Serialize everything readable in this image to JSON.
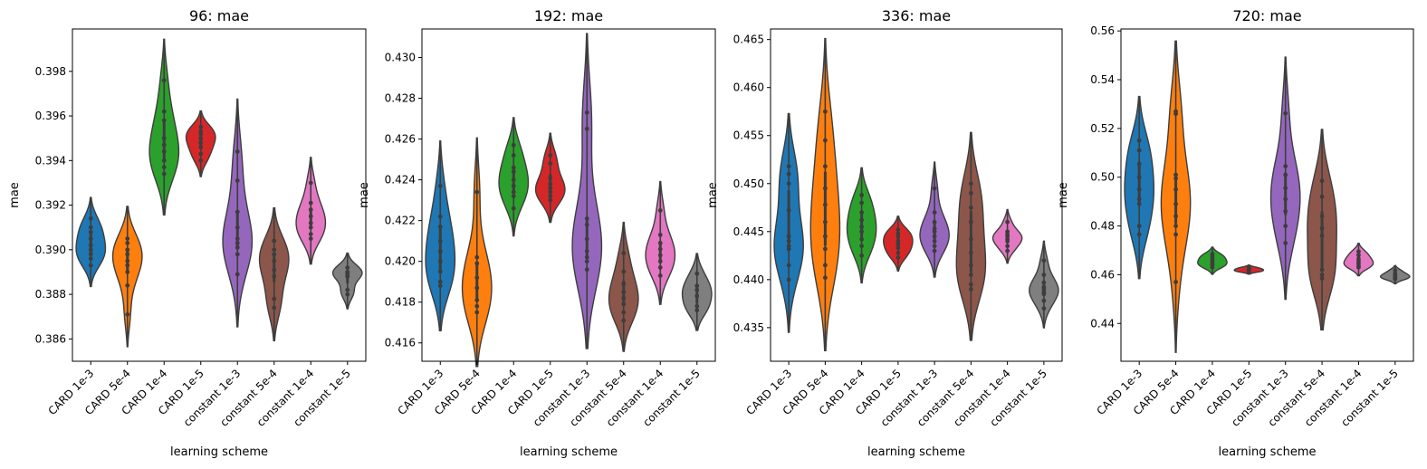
{
  "chart_data": [
    {
      "type": "violin",
      "title": "96: mae",
      "xlabel": "learning scheme",
      "ylabel": "mae",
      "ylim": [
        0.385,
        0.3999
      ],
      "yticks": [
        0.386,
        0.388,
        0.39,
        0.392,
        0.394,
        0.396,
        0.398
      ],
      "tick_decimals": 3,
      "categories": [
        "CARD 1e-3",
        "CARD 5e-4",
        "CARD 1e-4",
        "CARD 1e-5",
        "constant 1e-3",
        "constant 5e-4",
        "constant 1e-4",
        "constant 1e-5"
      ],
      "series": [
        {
          "name": "CARD 1e-3",
          "points": [
            0.391,
            0.3905,
            0.39,
            0.3898,
            0.3902,
            0.3896,
            0.3908,
            0.3914,
            0.3893
          ]
        },
        {
          "name": "CARD 5e-4",
          "points": [
            0.3903,
            0.39,
            0.3898,
            0.3895,
            0.3893,
            0.389,
            0.3884,
            0.3871,
            0.3905
          ]
        },
        {
          "name": "CARD 1e-4",
          "points": [
            0.3976,
            0.3962,
            0.3958,
            0.395,
            0.3947,
            0.3944,
            0.394,
            0.3937,
            0.3934
          ]
        },
        {
          "name": "CARD 1e-5",
          "points": [
            0.3955,
            0.3952,
            0.395,
            0.3948,
            0.3946,
            0.3943,
            0.394,
            0.3953
          ]
        },
        {
          "name": "constant 1e-3",
          "points": [
            0.3944,
            0.3931,
            0.3917,
            0.391,
            0.3905,
            0.3901,
            0.3898,
            0.3889,
            0.3903
          ]
        },
        {
          "name": "constant 5e-4",
          "points": [
            0.3904,
            0.3898,
            0.3895,
            0.3891,
            0.3888,
            0.3878,
            0.3874,
            0.39
          ]
        },
        {
          "name": "constant 1e-4",
          "points": [
            0.393,
            0.3921,
            0.3918,
            0.3915,
            0.3912,
            0.391,
            0.3907,
            0.3905
          ]
        },
        {
          "name": "constant 1e-5",
          "points": [
            0.3892,
            0.389,
            0.3889,
            0.3888,
            0.3882,
            0.388,
            0.389
          ]
        }
      ]
    },
    {
      "type": "violin",
      "title": "192: mae",
      "xlabel": "learning scheme",
      "ylabel": "mae",
      "ylim": [
        0.4151,
        0.4314
      ],
      "yticks": [
        0.416,
        0.418,
        0.42,
        0.422,
        0.424,
        0.426,
        0.428,
        0.43
      ],
      "tick_decimals": 3,
      "categories": [
        "CARD 1e-3",
        "CARD 5e-4",
        "CARD 1e-4",
        "CARD 1e-5",
        "constant 1e-3",
        "constant 5e-4",
        "constant 1e-4",
        "constant 1e-5"
      ],
      "series": [
        {
          "name": "CARD 1e-3",
          "points": [
            0.4237,
            0.4222,
            0.4217,
            0.421,
            0.4205,
            0.42,
            0.4195,
            0.419,
            0.4188
          ]
        },
        {
          "name": "CARD 5e-4",
          "points": [
            0.4234,
            0.4202,
            0.4199,
            0.4192,
            0.4187,
            0.4181,
            0.4178,
            0.4175
          ]
        },
        {
          "name": "CARD 1e-4",
          "points": [
            0.4257,
            0.4252,
            0.4246,
            0.4244,
            0.424,
            0.4237,
            0.4234,
            0.4232,
            0.4226
          ]
        },
        {
          "name": "CARD 1e-5",
          "points": [
            0.4252,
            0.4248,
            0.4241,
            0.4238,
            0.4236,
            0.4234,
            0.4232,
            0.423
          ]
        },
        {
          "name": "constant 1e-3",
          "points": [
            0.4273,
            0.4265,
            0.4221,
            0.4218,
            0.4211,
            0.4205,
            0.4202,
            0.42,
            0.4196
          ]
        },
        {
          "name": "constant 5e-4",
          "points": [
            0.4204,
            0.4195,
            0.4189,
            0.4185,
            0.4182,
            0.4179,
            0.4175,
            0.4171
          ]
        },
        {
          "name": "constant 1e-4",
          "points": [
            0.4225,
            0.4213,
            0.4209,
            0.4206,
            0.4203,
            0.42,
            0.4197,
            0.4193
          ]
        },
        {
          "name": "constant 1e-5",
          "points": [
            0.4194,
            0.4188,
            0.4186,
            0.4183,
            0.4178,
            0.4176
          ]
        }
      ]
    },
    {
      "type": "violin",
      "title": "336: mae",
      "xlabel": "learning scheme",
      "ylabel": "mae",
      "ylim": [
        0.4315,
        0.4661
      ],
      "yticks": [
        0.435,
        0.44,
        0.445,
        0.45,
        0.455,
        0.46,
        0.465
      ],
      "tick_decimals": 3,
      "categories": [
        "CARD 1e-3",
        "CARD 5e-4",
        "CARD 1e-4",
        "CARD 1e-5",
        "constant 1e-3",
        "constant 5e-4",
        "constant 1e-4",
        "constant 1e-5"
      ],
      "series": [
        {
          "name": "CARD 1e-3",
          "points": [
            0.4518,
            0.451,
            0.45,
            0.4472,
            0.4445,
            0.444,
            0.4435,
            0.4432,
            0.4415,
            0.44
          ]
        },
        {
          "name": "CARD 5e-4",
          "points": [
            0.4575,
            0.4545,
            0.4518,
            0.4495,
            0.4478,
            0.446,
            0.4445,
            0.4432,
            0.4415,
            0.4402
          ]
        },
        {
          "name": "CARD 1e-4",
          "points": [
            0.4488,
            0.448,
            0.447,
            0.4462,
            0.4455,
            0.445,
            0.4442,
            0.4435,
            0.4425
          ]
        },
        {
          "name": "CARD 1e-5",
          "points": [
            0.4452,
            0.4448,
            0.4445,
            0.444,
            0.4437,
            0.4433,
            0.4428,
            0.4423
          ]
        },
        {
          "name": "constant 1e-3",
          "points": [
            0.4495,
            0.447,
            0.446,
            0.4453,
            0.445,
            0.4445,
            0.444,
            0.4435,
            0.443
          ]
        },
        {
          "name": "constant 5e-4",
          "points": [
            0.45,
            0.449,
            0.4475,
            0.446,
            0.4442,
            0.4428,
            0.4415,
            0.4405,
            0.4395,
            0.439
          ]
        },
        {
          "name": "constant 1e-4",
          "points": [
            0.446,
            0.445,
            0.4447,
            0.4445,
            0.4442,
            0.444,
            0.4435,
            0.443
          ]
        },
        {
          "name": "constant 1e-5",
          "points": [
            0.442,
            0.4405,
            0.4397,
            0.4392,
            0.439,
            0.4387,
            0.4385,
            0.4378,
            0.437
          ]
        }
      ]
    },
    {
      "type": "violin",
      "title": "720: mae",
      "xlabel": "learning scheme",
      "ylabel": "mae",
      "ylim": [
        0.4245,
        0.5608
      ],
      "yticks": [
        0.44,
        0.46,
        0.48,
        0.5,
        0.52,
        0.54,
        0.56
      ],
      "tick_decimals": 2,
      "categories": [
        "CARD 1e-3",
        "CARD 5e-4",
        "CARD 1e-4",
        "CARD 1e-5",
        "constant 1e-3",
        "constant 5e-4",
        "constant 1e-4",
        "constant 1e-5"
      ],
      "series": [
        {
          "name": "CARD 1e-3",
          "points": [
            0.515,
            0.511,
            0.5055,
            0.5,
            0.495,
            0.491,
            0.489,
            0.48,
            0.4765
          ]
        },
        {
          "name": "CARD 5e-4",
          "points": [
            0.527,
            0.526,
            0.501,
            0.4995,
            0.495,
            0.489,
            0.484,
            0.48,
            0.4765,
            0.457
          ]
        },
        {
          "name": "CARD 1e-4",
          "points": [
            0.4685,
            0.4675,
            0.4665,
            0.4655,
            0.4645,
            0.464,
            0.463
          ]
        },
        {
          "name": "CARD 1e-5",
          "points": [
            0.463,
            0.4625,
            0.4622,
            0.4618,
            0.4615,
            0.4612
          ]
        },
        {
          "name": "constant 1e-3",
          "points": [
            0.5262,
            0.5045,
            0.501,
            0.4955,
            0.491,
            0.486,
            0.48,
            0.473
          ]
        },
        {
          "name": "constant 5e-4",
          "points": [
            0.4985,
            0.492,
            0.484,
            0.479,
            0.476,
            0.462,
            0.46,
            0.4585
          ]
        },
        {
          "name": "constant 1e-4",
          "points": [
            0.4695,
            0.468,
            0.4665,
            0.4655,
            0.4645,
            0.4635,
            0.463
          ]
        },
        {
          "name": "constant 1e-5",
          "points": [
            0.4618,
            0.4605,
            0.4598,
            0.4592,
            0.4587,
            0.4582
          ]
        }
      ]
    }
  ],
  "colors": [
    "#1f77b4",
    "#ff7f0e",
    "#2ca02c",
    "#d62728",
    "#9467bd",
    "#8c564b",
    "#e377c2",
    "#7f7f7f"
  ],
  "point_color": "#3d3d3d",
  "outline_color": "#3d3d3d"
}
